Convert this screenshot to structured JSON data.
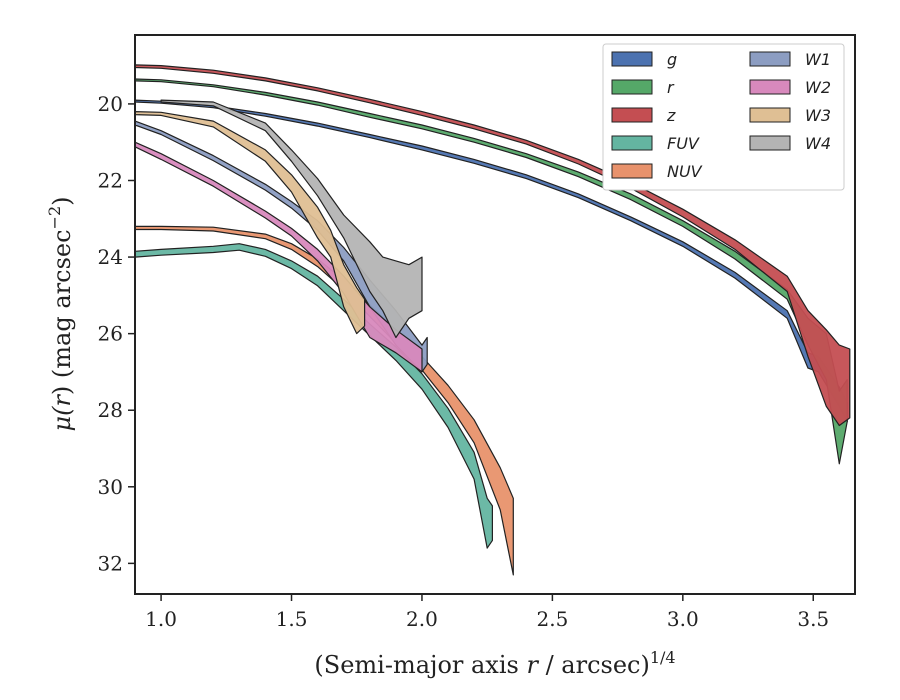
{
  "chart_data": {
    "type": "area",
    "xlabel_text": "(Semi-major axis ",
    "xlabel_r": "r",
    "xlabel_unit": " / arcsec)",
    "xlabel_sup": "1/4",
    "ylabel_mu": "μ(",
    "ylabel_r": "r",
    "ylabel_rest": ") (mag arcsec",
    "ylabel_sup": "−2",
    "ylabel_end": ")",
    "xlim": [
      0.9,
      3.66
    ],
    "ylim": [
      32.8,
      18.2
    ],
    "y_inverted": true,
    "xticks": [
      1.0,
      1.5,
      2.0,
      2.5,
      3.0,
      3.5
    ],
    "xtick_labels": [
      "1.0",
      "1.5",
      "2.0",
      "2.5",
      "3.0",
      "3.5"
    ],
    "yticks": [
      20,
      22,
      24,
      26,
      28,
      30,
      32
    ],
    "ytick_labels": [
      "20",
      "22",
      "24",
      "26",
      "28",
      "30",
      "32"
    ],
    "grid": false,
    "legend_position": "top-right",
    "legend_columns": 2,
    "series": [
      {
        "name": "g",
        "color": "#4c72b0",
        "points": [
          [
            0.9,
            19.9,
            19.95
          ],
          [
            1.0,
            19.93,
            19.98
          ],
          [
            1.2,
            20.05,
            20.1
          ],
          [
            1.4,
            20.25,
            20.32
          ],
          [
            1.6,
            20.5,
            20.58
          ],
          [
            1.8,
            20.8,
            20.88
          ],
          [
            2.0,
            21.1,
            21.2
          ],
          [
            2.2,
            21.45,
            21.55
          ],
          [
            2.4,
            21.85,
            21.95
          ],
          [
            2.6,
            22.35,
            22.45
          ],
          [
            2.8,
            22.95,
            23.05
          ],
          [
            3.0,
            23.6,
            23.72
          ],
          [
            3.2,
            24.4,
            24.55
          ],
          [
            3.4,
            25.4,
            25.6
          ],
          [
            3.48,
            26.5,
            26.9
          ],
          [
            3.52,
            26.6,
            27.0
          ],
          [
            3.6,
            27.4,
            27.9
          ],
          [
            3.63,
            27.8,
            28.3
          ]
        ]
      },
      {
        "name": "r",
        "color": "#55a868",
        "points": [
          [
            0.9,
            19.35,
            19.4
          ],
          [
            1.0,
            19.37,
            19.42
          ],
          [
            1.2,
            19.5,
            19.55
          ],
          [
            1.4,
            19.7,
            19.77
          ],
          [
            1.6,
            19.95,
            20.03
          ],
          [
            1.8,
            20.25,
            20.35
          ],
          [
            2.0,
            20.55,
            20.65
          ],
          [
            2.2,
            20.9,
            21.0
          ],
          [
            2.4,
            21.3,
            21.4
          ],
          [
            2.6,
            21.78,
            21.9
          ],
          [
            2.8,
            22.35,
            22.5
          ],
          [
            3.0,
            23.05,
            23.2
          ],
          [
            3.2,
            23.85,
            24.05
          ],
          [
            3.4,
            24.85,
            25.1
          ],
          [
            3.48,
            25.6,
            26.3
          ],
          [
            3.55,
            26.0,
            27.2
          ],
          [
            3.6,
            27.5,
            29.4
          ],
          [
            3.63,
            27.2,
            28.3
          ]
        ]
      },
      {
        "name": "z",
        "color": "#c44e52",
        "points": [
          [
            0.9,
            18.98,
            19.05
          ],
          [
            1.0,
            19.0,
            19.07
          ],
          [
            1.2,
            19.12,
            19.2
          ],
          [
            1.4,
            19.32,
            19.4
          ],
          [
            1.6,
            19.58,
            19.66
          ],
          [
            1.8,
            19.88,
            19.97
          ],
          [
            2.0,
            20.2,
            20.3
          ],
          [
            2.2,
            20.55,
            20.65
          ],
          [
            2.4,
            20.95,
            21.05
          ],
          [
            2.6,
            21.45,
            21.57
          ],
          [
            2.8,
            22.05,
            22.2
          ],
          [
            3.0,
            22.75,
            22.95
          ],
          [
            3.2,
            23.55,
            23.8
          ],
          [
            3.4,
            24.5,
            24.9
          ],
          [
            3.48,
            25.4,
            26.6
          ],
          [
            3.55,
            25.9,
            27.9
          ],
          [
            3.6,
            26.3,
            28.4
          ],
          [
            3.64,
            26.4,
            28.2
          ]
        ]
      },
      {
        "name": "FUV",
        "color": "#64b5a1",
        "points": [
          [
            0.9,
            23.85,
            24.0
          ],
          [
            1.0,
            23.8,
            23.95
          ],
          [
            1.2,
            23.72,
            23.88
          ],
          [
            1.3,
            23.65,
            23.82
          ],
          [
            1.4,
            23.8,
            23.98
          ],
          [
            1.5,
            24.1,
            24.3
          ],
          [
            1.6,
            24.5,
            24.75
          ],
          [
            1.7,
            25.1,
            25.4
          ],
          [
            1.8,
            25.75,
            26.05
          ],
          [
            1.9,
            26.35,
            26.7
          ],
          [
            2.0,
            27.05,
            27.45
          ],
          [
            2.1,
            27.95,
            28.45
          ],
          [
            2.2,
            29.1,
            29.8
          ],
          [
            2.25,
            30.3,
            31.6
          ],
          [
            2.27,
            30.5,
            31.4
          ]
        ]
      },
      {
        "name": "NUV",
        "color": "#e8926c",
        "points": [
          [
            0.9,
            23.2,
            23.28
          ],
          [
            1.0,
            23.2,
            23.28
          ],
          [
            1.2,
            23.22,
            23.32
          ],
          [
            1.4,
            23.4,
            23.52
          ],
          [
            1.5,
            23.65,
            23.8
          ],
          [
            1.6,
            24.05,
            24.25
          ],
          [
            1.7,
            24.6,
            24.85
          ],
          [
            1.8,
            25.25,
            25.55
          ],
          [
            1.9,
            25.9,
            26.25
          ],
          [
            2.0,
            26.6,
            26.95
          ],
          [
            2.1,
            27.35,
            27.8
          ],
          [
            2.2,
            28.25,
            28.85
          ],
          [
            2.3,
            29.5,
            30.6
          ],
          [
            2.35,
            30.3,
            32.3
          ]
        ]
      },
      {
        "name": "W1",
        "color": "#8c9dc2",
        "points": [
          [
            0.9,
            20.45,
            20.55
          ],
          [
            1.0,
            20.7,
            20.8
          ],
          [
            1.2,
            21.35,
            21.48
          ],
          [
            1.4,
            22.1,
            22.25
          ],
          [
            1.5,
            22.55,
            22.72
          ],
          [
            1.6,
            23.05,
            23.3
          ],
          [
            1.7,
            23.75,
            24.1
          ],
          [
            1.8,
            24.6,
            25.3
          ],
          [
            1.9,
            25.4,
            26.3
          ],
          [
            2.0,
            26.3,
            27.0
          ],
          [
            2.02,
            26.1,
            26.8
          ]
        ]
      },
      {
        "name": "W2",
        "color": "#d889bd",
        "points": [
          [
            0.9,
            21.0,
            21.12
          ],
          [
            1.0,
            21.3,
            21.45
          ],
          [
            1.2,
            22.0,
            22.15
          ],
          [
            1.4,
            22.8,
            22.98
          ],
          [
            1.5,
            23.25,
            23.45
          ],
          [
            1.6,
            23.8,
            24.1
          ],
          [
            1.7,
            24.5,
            24.95
          ],
          [
            1.8,
            25.3,
            26.1
          ],
          [
            1.9,
            25.9,
            26.5
          ],
          [
            2.0,
            26.4,
            27.0
          ]
        ]
      },
      {
        "name": "W3",
        "color": "#dfbf94",
        "points": [
          [
            0.9,
            20.2,
            20.28
          ],
          [
            1.0,
            20.22,
            20.3
          ],
          [
            1.2,
            20.45,
            20.6
          ],
          [
            1.4,
            21.2,
            21.5
          ],
          [
            1.5,
            21.85,
            22.3
          ],
          [
            1.6,
            22.7,
            23.5
          ],
          [
            1.65,
            23.3,
            24.0
          ],
          [
            1.7,
            24.2,
            25.3
          ],
          [
            1.75,
            24.8,
            26.0
          ],
          [
            1.78,
            25.1,
            25.8
          ]
        ]
      },
      {
        "name": "W4",
        "color": "#b4b4b4",
        "points": [
          [
            1.0,
            19.9,
            19.95
          ],
          [
            1.2,
            19.95,
            20.05
          ],
          [
            1.4,
            20.5,
            20.7
          ],
          [
            1.5,
            21.2,
            21.5
          ],
          [
            1.6,
            21.95,
            22.4
          ],
          [
            1.7,
            22.9,
            23.5
          ],
          [
            1.8,
            23.6,
            24.9
          ],
          [
            1.85,
            24.0,
            25.4
          ],
          [
            1.9,
            24.1,
            26.1
          ],
          [
            1.95,
            24.2,
            25.6
          ],
          [
            2.0,
            24.0,
            25.4
          ]
        ]
      }
    ]
  }
}
